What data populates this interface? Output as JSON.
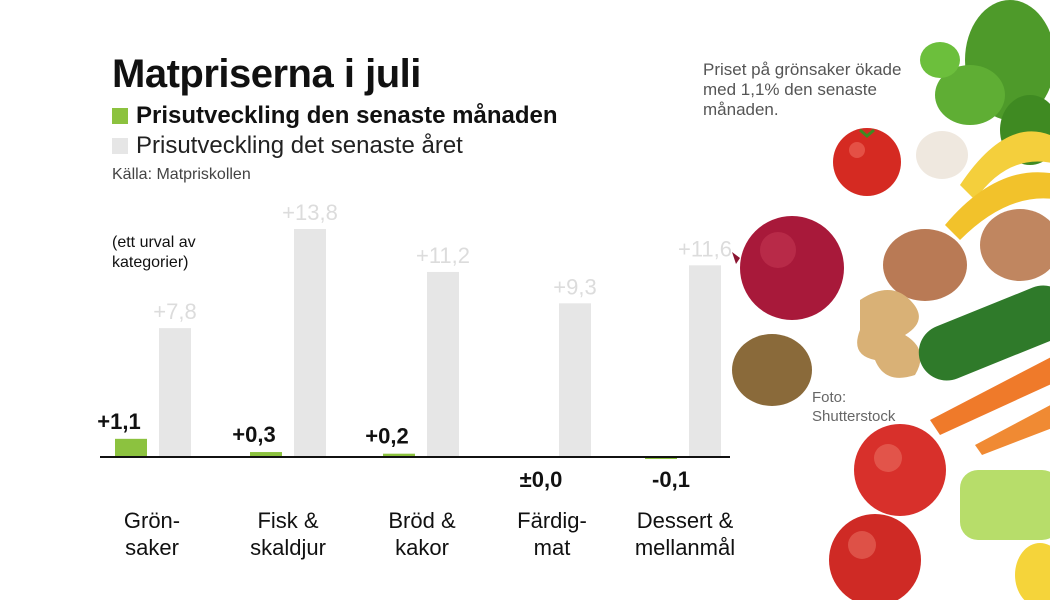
{
  "header": {
    "title": "Matpriserna i juli",
    "legend_month": "Prisutveckling den senaste månaden",
    "legend_year": "Prisutveckling det senaste året",
    "source": "Källa: Matpriskollen"
  },
  "note": "(ett urval av kategorier)",
  "caption": "Priset på grönsaker ökade med 1,1% den senaste månaden.",
  "photo_credit": "Foto: Shutterstock",
  "colors": {
    "month": "#8cc23f",
    "year": "#e6e6e6",
    "axis": "#111111"
  },
  "chart_data": {
    "type": "bar",
    "categories": [
      [
        "Grön-",
        "saker"
      ],
      [
        "Fisk &",
        "skaldjur"
      ],
      [
        "Bröd &",
        "kakor"
      ],
      [
        "Färdig-",
        "mat"
      ],
      [
        "Dessert &",
        "mellanmål"
      ]
    ],
    "series": [
      {
        "name": "Prisutveckling den senaste månaden",
        "values": [
          1.1,
          0.3,
          0.2,
          0.0,
          -0.1
        ],
        "labels": [
          "+1,1",
          "+0,3",
          "+0,2",
          "±0,0",
          "-0,1"
        ]
      },
      {
        "name": "Prisutveckling det senaste året",
        "values": [
          7.8,
          13.8,
          11.2,
          9.3,
          11.6
        ],
        "labels": [
          "+7,8",
          "+13,8",
          "+11,2",
          "+9,3",
          "+11,6"
        ]
      }
    ],
    "title": "Matpriserna i juli",
    "xlabel": "",
    "ylabel": "",
    "ylim": [
      -0.1,
      13.8
    ],
    "grid": false,
    "legend": "top-left"
  }
}
